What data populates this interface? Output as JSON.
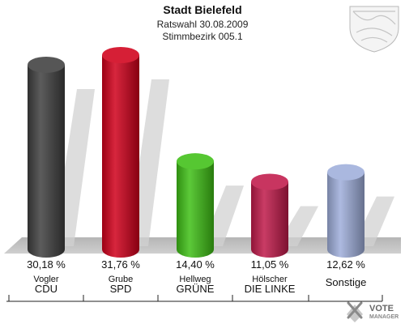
{
  "chart_data": {
    "type": "bar",
    "title": "Stadt Bielefeld",
    "subtitle_lines": [
      "Ratswahl 30.08.2009",
      "Stimmbezirk 005.1"
    ],
    "categories": [
      "CDU",
      "SPD",
      "GRÜNE",
      "DIE LINKE",
      "Sonstige"
    ],
    "candidates": [
      "Vogler",
      "Grube",
      "Hellweg",
      "Hölscher",
      ""
    ],
    "values": [
      30.18,
      31.76,
      14.4,
      11.05,
      12.62
    ],
    "value_labels": [
      "30,18 %",
      "31,76 %",
      "14,40 %",
      "11,05 %",
      "12,62 %"
    ],
    "colors": [
      "#3f3f3f",
      "#d0001b",
      "#3fbf16",
      "#c01a4a",
      "#9eaedb"
    ],
    "ylim": [
      0,
      35
    ],
    "grid": false,
    "legend": "none"
  },
  "branding": {
    "line1": "VOTE",
    "line2": "MANAGER"
  }
}
